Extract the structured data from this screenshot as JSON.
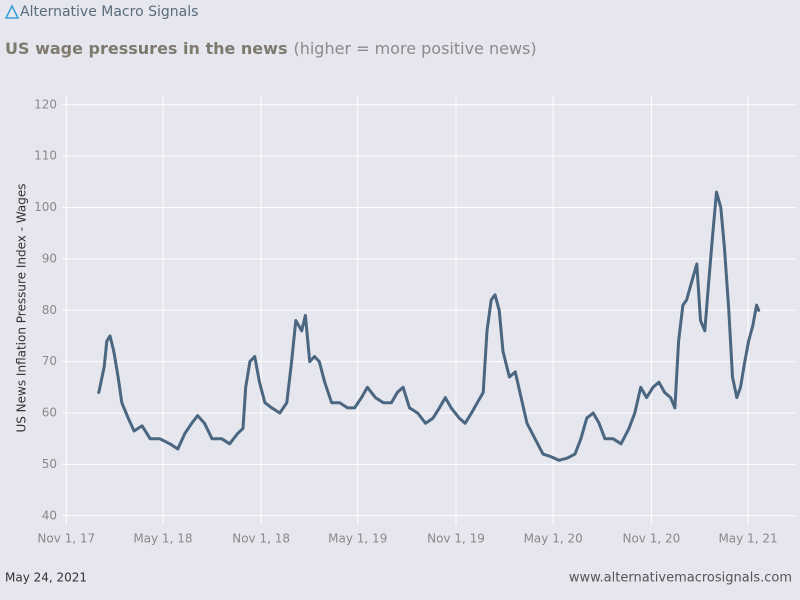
{
  "brand": "Alternative Macro Signals",
  "footer": {
    "date": "May 24, 2021",
    "url": "www.alternativemacrosignals.com"
  },
  "chart_data": {
    "type": "line",
    "title": "US wage pressures in the news",
    "subtitle": "(higher = more positive news)",
    "y_label": "US News Inflation Pressure Index - Wages",
    "grid": true,
    "xlim": [
      "2017-10-24",
      "2021-07-28"
    ],
    "xticks": [
      {
        "value": "2017-11-01",
        "label": "Nov 1, 17"
      },
      {
        "value": "2018-05-01",
        "label": "May 1, 18"
      },
      {
        "value": "2018-11-01",
        "label": "Nov 1, 18"
      },
      {
        "value": "2019-05-01",
        "label": "May 1, 19"
      },
      {
        "value": "2019-11-01",
        "label": "Nov 1, 19"
      },
      {
        "value": "2020-05-01",
        "label": "May 1, 20"
      },
      {
        "value": "2020-11-01",
        "label": "Nov 1, 20"
      },
      {
        "value": "2021-05-01",
        "label": "May 1, 21"
      }
    ],
    "ylim": [
      38.2,
      121.9
    ],
    "yticks": [
      40,
      50,
      60,
      70,
      80,
      90,
      100,
      110,
      120
    ],
    "x": [
      "2018-01-01",
      "2018-01-11",
      "2018-01-16",
      "2018-01-22",
      "2018-01-29",
      "2018-02-06",
      "2018-02-13",
      "2018-02-25",
      "2018-03-08",
      "2018-03-23",
      "2018-04-07",
      "2018-04-25",
      "2018-05-14",
      "2018-05-29",
      "2018-06-11",
      "2018-06-24",
      "2018-07-05",
      "2018-07-18",
      "2018-08-01",
      "2018-08-19",
      "2018-09-03",
      "2018-09-18",
      "2018-09-28",
      "2018-10-03",
      "2018-10-11",
      "2018-10-20",
      "2018-10-29",
      "2018-11-08",
      "2018-11-21",
      "2018-12-06",
      "2018-12-19",
      "2018-12-28",
      "2019-01-05",
      "2019-01-16",
      "2019-01-23",
      "2019-01-31",
      "2019-02-09",
      "2019-02-18",
      "2019-02-28",
      "2019-03-13",
      "2019-03-28",
      "2019-04-12",
      "2019-04-25",
      "2019-05-08",
      "2019-05-19",
      "2019-06-03",
      "2019-06-18",
      "2019-07-03",
      "2019-07-14",
      "2019-07-25",
      "2019-08-06",
      "2019-08-21",
      "2019-09-05",
      "2019-09-19",
      "2019-10-01",
      "2019-10-12",
      "2019-10-23",
      "2019-11-07",
      "2019-11-18",
      "2019-11-30",
      "2019-12-11",
      "2019-12-22",
      "2019-12-29",
      "2020-01-06",
      "2020-01-13",
      "2020-01-21",
      "2020-01-28",
      "2020-02-09",
      "2020-02-20",
      "2020-03-02",
      "2020-03-13",
      "2020-03-28",
      "2020-04-12",
      "2020-04-27",
      "2020-05-12",
      "2020-05-27",
      "2020-06-11",
      "2020-06-22",
      "2020-07-03",
      "2020-07-15",
      "2020-07-26",
      "2020-08-06",
      "2020-08-21",
      "2020-09-05",
      "2020-09-20",
      "2020-10-01",
      "2020-10-12",
      "2020-10-23",
      "2020-11-04",
      "2020-11-15",
      "2020-11-26",
      "2020-12-07",
      "2020-12-15",
      "2020-12-22",
      "2020-12-30",
      "2021-01-06",
      "2021-01-14",
      "2021-01-25",
      "2021-02-01",
      "2021-02-09",
      "2021-02-16",
      "2021-02-24",
      "2021-03-03",
      "2021-03-11",
      "2021-03-18",
      "2021-03-26",
      "2021-04-02",
      "2021-04-10",
      "2021-04-17",
      "2021-04-25",
      "2021-05-02",
      "2021-05-10",
      "2021-05-17",
      "2021-05-21"
    ],
    "series": [
      {
        "name": "US News Inflation Pressure Index - Wages",
        "color": "#4b6680",
        "values": [
          64,
          69,
          74,
          75,
          72,
          67,
          62,
          59,
          56.5,
          57.5,
          55,
          55,
          54,
          53,
          56,
          58,
          59.5,
          58,
          55,
          55,
          54,
          56,
          57,
          65,
          70,
          71,
          66,
          62,
          61,
          60,
          62,
          70,
          78,
          76,
          79,
          70,
          71,
          70,
          66,
          62,
          62,
          61,
          61,
          63,
          65,
          63,
          62,
          62,
          64,
          65,
          61,
          60,
          58,
          59,
          61,
          63,
          61,
          59,
          58,
          60,
          62,
          64,
          76,
          82,
          83,
          80,
          72,
          67,
          68,
          63,
          58,
          55,
          52,
          51.5,
          50.8,
          51.2,
          52,
          55,
          59,
          60,
          58,
          55,
          55,
          54,
          57,
          60,
          65,
          63,
          65,
          66,
          64,
          63,
          61,
          74,
          81,
          82,
          85,
          89,
          78,
          76,
          85,
          95,
          103,
          100,
          92,
          80,
          67,
          63,
          65,
          70,
          74,
          77,
          81,
          80
        ]
      }
    ]
  }
}
